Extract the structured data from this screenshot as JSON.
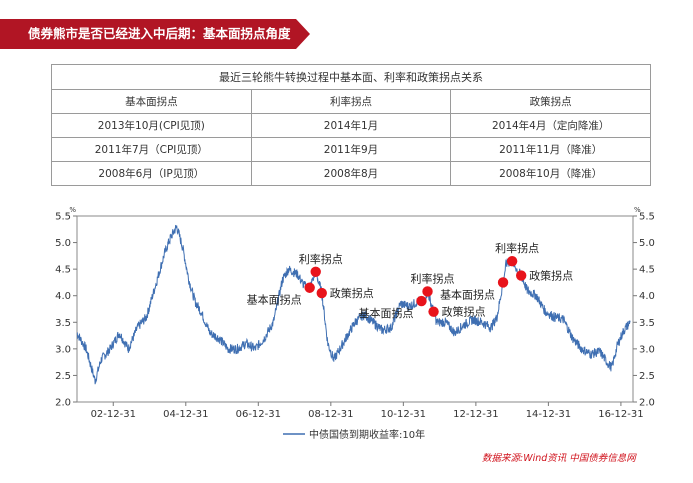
{
  "banner": {
    "title": "债券熊市是否已经进入中后期：基本面拐点角度"
  },
  "table": {
    "caption": "最近三轮熊牛转换过程中基本面、利率和政策拐点关系",
    "headers": [
      "基本面拐点",
      "利率拐点",
      "政策拐点"
    ],
    "rows": [
      [
        "2013年10月(CPI见顶)",
        "2014年1月",
        "2014年4月（定向降准）"
      ],
      [
        "2011年7月（CPI见顶）",
        "2011年9月",
        "2011年11月（降准）"
      ],
      [
        "2008年6月（IP见顶）",
        "2008年8月",
        "2008年10月（降准）"
      ]
    ]
  },
  "source": "数据来源:Wind资讯 中国债券信息网",
  "colors": {
    "banner": "#b11524",
    "line": "#3f6fb2",
    "marker": "#e8131b",
    "source_text": "#d0111b"
  },
  "chart_data": {
    "type": "line",
    "unit_left": "%",
    "unit_right": "%",
    "ylim": [
      2.0,
      5.5
    ],
    "yticks": [
      2.0,
      2.5,
      3.0,
      3.5,
      4.0,
      4.5,
      5.0,
      5.5
    ],
    "xlim": [
      "2002-01-01",
      "2017-05-01"
    ],
    "xticks": [
      "02-12-31",
      "04-12-31",
      "06-12-31",
      "08-12-31",
      "10-12-31",
      "12-12-31",
      "14-12-31",
      "16-12-31"
    ],
    "legend": "中债国债到期收益率:10年",
    "legend_position": "bottom",
    "series": [
      {
        "name": "中债国债到期收益率:10年",
        "x": [
          "2002-01",
          "2002-04",
          "2002-07",
          "2002-09",
          "2002-12",
          "2003-03",
          "2003-06",
          "2003-09",
          "2003-12",
          "2004-03",
          "2004-06",
          "2004-08",
          "2004-10",
          "2004-12",
          "2005-02",
          "2005-04",
          "2005-06",
          "2005-09",
          "2005-12",
          "2006-03",
          "2006-06",
          "2006-09",
          "2006-12",
          "2007-03",
          "2007-06",
          "2007-09",
          "2007-11",
          "2008-02",
          "2008-04",
          "2008-06",
          "2008-08",
          "2008-10",
          "2008-12",
          "2009-02",
          "2009-06",
          "2009-09",
          "2009-12",
          "2010-03",
          "2010-06",
          "2010-09",
          "2010-12",
          "2011-03",
          "2011-06",
          "2011-08",
          "2011-09",
          "2011-11",
          "2011-12",
          "2012-03",
          "2012-06",
          "2012-09",
          "2012-12",
          "2013-03",
          "2013-06",
          "2013-08",
          "2013-10",
          "2013-11",
          "2014-01",
          "2014-03",
          "2014-04",
          "2014-06",
          "2014-09",
          "2014-12",
          "2015-03",
          "2015-06",
          "2015-09",
          "2015-12",
          "2016-03",
          "2016-06",
          "2016-09",
          "2016-10",
          "2016-12",
          "2017-02",
          "2017-04"
        ],
        "values": [
          3.3,
          3.0,
          2.4,
          2.8,
          3.0,
          3.3,
          3.0,
          3.4,
          3.6,
          4.2,
          4.8,
          5.1,
          5.3,
          4.9,
          4.3,
          3.9,
          3.7,
          3.3,
          3.2,
          3.0,
          3.0,
          3.1,
          3.0,
          3.2,
          3.5,
          4.3,
          4.5,
          4.4,
          4.2,
          4.15,
          4.45,
          4.05,
          3.1,
          2.8,
          3.2,
          3.5,
          3.65,
          3.5,
          3.35,
          3.4,
          3.85,
          3.8,
          3.9,
          3.9,
          4.08,
          3.7,
          3.5,
          3.5,
          3.3,
          3.45,
          3.55,
          3.5,
          3.4,
          3.6,
          4.25,
          4.6,
          4.65,
          4.45,
          4.38,
          4.1,
          4.0,
          3.7,
          3.6,
          3.55,
          3.2,
          3.0,
          2.9,
          2.95,
          2.7,
          2.65,
          3.1,
          3.35,
          3.5
        ]
      }
    ],
    "annotations": [
      {
        "label": "基本面拐点",
        "x": "2008-06",
        "y": 4.15
      },
      {
        "label": "利率拐点",
        "x": "2008-08",
        "y": 4.45
      },
      {
        "label": "政策拐点",
        "x": "2008-10",
        "y": 4.05
      },
      {
        "label": "基本面拐点",
        "x": "2011-07",
        "y": 3.9
      },
      {
        "label": "利率拐点",
        "x": "2011-09",
        "y": 4.08
      },
      {
        "label": "政策拐点",
        "x": "2011-11",
        "y": 3.7
      },
      {
        "label": "基本面拐点",
        "x": "2013-10",
        "y": 4.25
      },
      {
        "label": "利率拐点",
        "x": "2014-01",
        "y": 4.65
      },
      {
        "label": "政策拐点",
        "x": "2014-04",
        "y": 4.38
      }
    ]
  }
}
